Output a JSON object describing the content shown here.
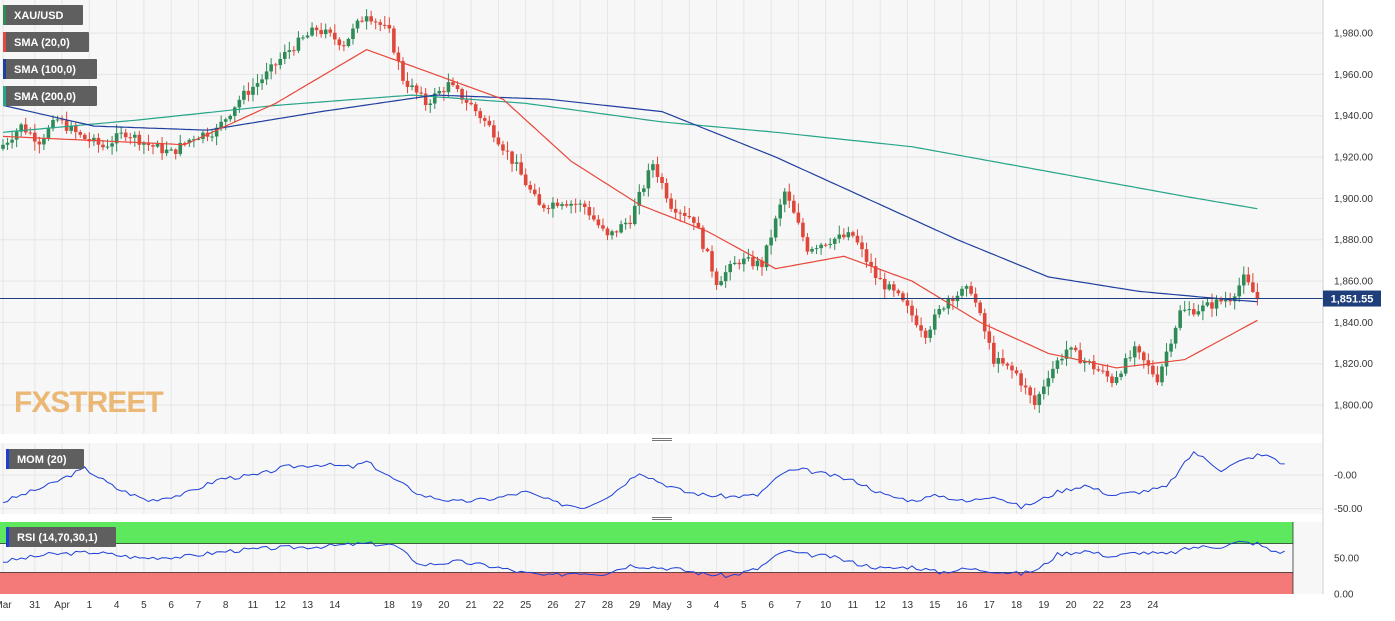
{
  "colors": {
    "background": "#ffffff",
    "plot_bg": "#f7f7f7",
    "grid": "#e6e6e6",
    "bull": "#2e8b57",
    "bear": "#e0473b",
    "sma20": "#e8473b",
    "sma100": "#1f3f9f",
    "sma200": "#27a58a",
    "price_line": "#1f3f7a",
    "mom": "#1c3fd6",
    "rsi": "#1c3fd6",
    "rsi_overbought": "#5de85d",
    "rsi_oversold": "#f47a7a",
    "tag_bg": "#5f5f5f",
    "price_tag_bg": "#1f3f7a",
    "watermark": "#e8a34a"
  },
  "watermark": {
    "fx": "FX",
    "street": "STREET"
  },
  "legend": {
    "symbol": "XAU/USD",
    "sma20": "SMA (20,0)",
    "sma100": "SMA (100,0)",
    "sma200": "SMA (200,0)",
    "mom": "MOM (20)",
    "rsi": "RSI (14,70,30,1)"
  },
  "last_price_label": "1,851.55",
  "chart_data": [
    {
      "type": "candlestick",
      "series_name": "XAU/USD",
      "timeframe": "4h",
      "ylim": [
        1786,
        1996
      ],
      "yticks": [
        1800,
        1820,
        1840,
        1860,
        1880,
        1900,
        1920,
        1940,
        1960,
        1980
      ],
      "ytick_labels": [
        "1,800.00",
        "1,820.00",
        "1,840.00",
        "1,860.00",
        "1,880.00",
        "1,900.00",
        "1,920.00",
        "1,940.00",
        "1,960.00",
        "1,980.00"
      ],
      "last_price": 1851.55,
      "x_labels": [
        "Mar",
        "31",
        "Apr",
        "1",
        "4",
        "5",
        "6",
        "7",
        "8",
        "11",
        "12",
        "13",
        "14",
        "18",
        "19",
        "20",
        "21",
        "22",
        "25",
        "26",
        "27",
        "28",
        "29",
        "May",
        "3",
        "4",
        "5",
        "6",
        "7",
        "10",
        "11",
        "12",
        "13",
        "15",
        "16",
        "17",
        "18",
        "19",
        "20",
        "22",
        "23",
        "24"
      ],
      "label_x_index": [
        0,
        7,
        13,
        19,
        25,
        31,
        37,
        43,
        49,
        55,
        61,
        67,
        73,
        85,
        91,
        97,
        103,
        109,
        115,
        121,
        127,
        133,
        139,
        145,
        151,
        157,
        163,
        169,
        175,
        181,
        187,
        193,
        199,
        205,
        211,
        217,
        223,
        229,
        235,
        241,
        247,
        253
      ],
      "close_anchors": [
        [
          0,
          1926
        ],
        [
          4,
          1935
        ],
        [
          8,
          1928
        ],
        [
          12,
          1938
        ],
        [
          17,
          1930
        ],
        [
          22,
          1925
        ],
        [
          27,
          1932
        ],
        [
          32,
          1926
        ],
        [
          37,
          1922
        ],
        [
          42,
          1930
        ],
        [
          47,
          1933
        ],
        [
          52,
          1948
        ],
        [
          58,
          1960
        ],
        [
          63,
          1972
        ],
        [
          69,
          1982
        ],
        [
          75,
          1975
        ],
        [
          80,
          1990
        ],
        [
          85,
          1980
        ],
        [
          88,
          1958
        ],
        [
          93,
          1946
        ],
        [
          98,
          1955
        ],
        [
          103,
          1945
        ],
        [
          108,
          1932
        ],
        [
          113,
          1915
        ],
        [
          118,
          1896
        ],
        [
          123,
          1899
        ],
        [
          128,
          1896
        ],
        [
          133,
          1881
        ],
        [
          138,
          1890
        ],
        [
          143,
          1917
        ],
        [
          147,
          1897
        ],
        [
          152,
          1890
        ],
        [
          157,
          1860
        ],
        [
          162,
          1870
        ],
        [
          167,
          1868
        ],
        [
          172,
          1903
        ],
        [
          177,
          1876
        ],
        [
          182,
          1880
        ],
        [
          187,
          1882
        ],
        [
          192,
          1862
        ],
        [
          197,
          1852
        ],
        [
          203,
          1835
        ],
        [
          208,
          1852
        ],
        [
          213,
          1856
        ],
        [
          218,
          1822
        ],
        [
          223,
          1815
        ],
        [
          227,
          1800
        ],
        [
          230,
          1815
        ],
        [
          234,
          1827
        ],
        [
          239,
          1820
        ],
        [
          244,
          1812
        ],
        [
          249,
          1826
        ],
        [
          254,
          1813
        ],
        [
          259,
          1845
        ],
        [
          264,
          1847
        ],
        [
          270,
          1852
        ],
        [
          273,
          1861
        ],
        [
          276,
          1851.55
        ]
      ],
      "sma20_anchors": [
        [
          0,
          1930
        ],
        [
          40,
          1926
        ],
        [
          60,
          1946
        ],
        [
          80,
          1972
        ],
        [
          95,
          1960
        ],
        [
          110,
          1948
        ],
        [
          125,
          1918
        ],
        [
          140,
          1897
        ],
        [
          155,
          1884
        ],
        [
          170,
          1866
        ],
        [
          185,
          1872
        ],
        [
          200,
          1860
        ],
        [
          215,
          1840
        ],
        [
          230,
          1825
        ],
        [
          245,
          1818
        ],
        [
          260,
          1822
        ],
        [
          276,
          1841
        ]
      ],
      "sma100_anchors": [
        [
          0,
          1945
        ],
        [
          20,
          1935
        ],
        [
          45,
          1933
        ],
        [
          70,
          1942
        ],
        [
          95,
          1950
        ],
        [
          120,
          1948
        ],
        [
          145,
          1942
        ],
        [
          170,
          1920
        ],
        [
          190,
          1900
        ],
        [
          210,
          1880
        ],
        [
          230,
          1862
        ],
        [
          250,
          1855
        ],
        [
          270,
          1851
        ],
        [
          276,
          1850
        ]
      ],
      "sma200_anchors": [
        [
          0,
          1932
        ],
        [
          30,
          1938
        ],
        [
          60,
          1945
        ],
        [
          90,
          1950
        ],
        [
          115,
          1946
        ],
        [
          145,
          1937
        ],
        [
          170,
          1932
        ],
        [
          200,
          1925
        ],
        [
          230,
          1913
        ],
        [
          260,
          1901
        ],
        [
          276,
          1895
        ]
      ]
    },
    {
      "type": "line",
      "series_name": "MOM (20)",
      "ylim": [
        -58,
        48
      ],
      "yticks": [
        -50,
        0
      ],
      "ytick_labels": [
        "-50.00",
        "-0.00"
      ],
      "anchors": [
        [
          0,
          -40
        ],
        [
          10,
          -15
        ],
        [
          18,
          10
        ],
        [
          25,
          -20
        ],
        [
          32,
          -38
        ],
        [
          40,
          -28
        ],
        [
          48,
          -5
        ],
        [
          56,
          0
        ],
        [
          62,
          12
        ],
        [
          70,
          16
        ],
        [
          77,
          12
        ],
        [
          80,
          20
        ],
        [
          85,
          -2
        ],
        [
          92,
          -30
        ],
        [
          100,
          -40
        ],
        [
          108,
          -35
        ],
        [
          115,
          -25
        ],
        [
          122,
          -42
        ],
        [
          128,
          -48
        ],
        [
          134,
          -28
        ],
        [
          140,
          5
        ],
        [
          145,
          -12
        ],
        [
          150,
          -25
        ],
        [
          155,
          -30
        ],
        [
          160,
          -32
        ],
        [
          166,
          -30
        ],
        [
          172,
          5
        ],
        [
          176,
          8
        ],
        [
          182,
          0
        ],
        [
          188,
          -10
        ],
        [
          194,
          -30
        ],
        [
          200,
          -38
        ],
        [
          206,
          -30
        ],
        [
          212,
          -40
        ],
        [
          218,
          -30
        ],
        [
          224,
          -48
        ],
        [
          228,
          -38
        ],
        [
          232,
          -25
        ],
        [
          238,
          -15
        ],
        [
          244,
          -30
        ],
        [
          250,
          -25
        ],
        [
          256,
          -18
        ],
        [
          262,
          35
        ],
        [
          268,
          8
        ],
        [
          272,
          20
        ],
        [
          276,
          30
        ],
        [
          279,
          28
        ],
        [
          282,
          15
        ]
      ]
    },
    {
      "type": "line",
      "series_name": "RSI (14,70,30,1)",
      "ylim": [
        0,
        100
      ],
      "yticks": [
        0,
        50
      ],
      "ytick_labels": [
        "0.00",
        "50.00"
      ],
      "overbought": 70,
      "oversold": 30,
      "anchors": [
        [
          0,
          45
        ],
        [
          10,
          55
        ],
        [
          20,
          58
        ],
        [
          30,
          50
        ],
        [
          40,
          52
        ],
        [
          50,
          60
        ],
        [
          60,
          64
        ],
        [
          70,
          66
        ],
        [
          80,
          70
        ],
        [
          86,
          68
        ],
        [
          92,
          40
        ],
        [
          100,
          45
        ],
        [
          108,
          38
        ],
        [
          114,
          30
        ],
        [
          120,
          25
        ],
        [
          126,
          30
        ],
        [
          132,
          28
        ],
        [
          138,
          40
        ],
        [
          142,
          38
        ],
        [
          148,
          35
        ],
        [
          154,
          28
        ],
        [
          160,
          25
        ],
        [
          166,
          35
        ],
        [
          172,
          60
        ],
        [
          176,
          55
        ],
        [
          182,
          52
        ],
        [
          188,
          42
        ],
        [
          194,
          35
        ],
        [
          200,
          38
        ],
        [
          206,
          30
        ],
        [
          212,
          35
        ],
        [
          218,
          32
        ],
        [
          224,
          28
        ],
        [
          228,
          35
        ],
        [
          232,
          55
        ],
        [
          238,
          60
        ],
        [
          244,
          52
        ],
        [
          250,
          58
        ],
        [
          256,
          55
        ],
        [
          262,
          65
        ],
        [
          268,
          66
        ],
        [
          272,
          72
        ],
        [
          276,
          70
        ],
        [
          279,
          60
        ],
        [
          282,
          58
        ]
      ]
    }
  ]
}
